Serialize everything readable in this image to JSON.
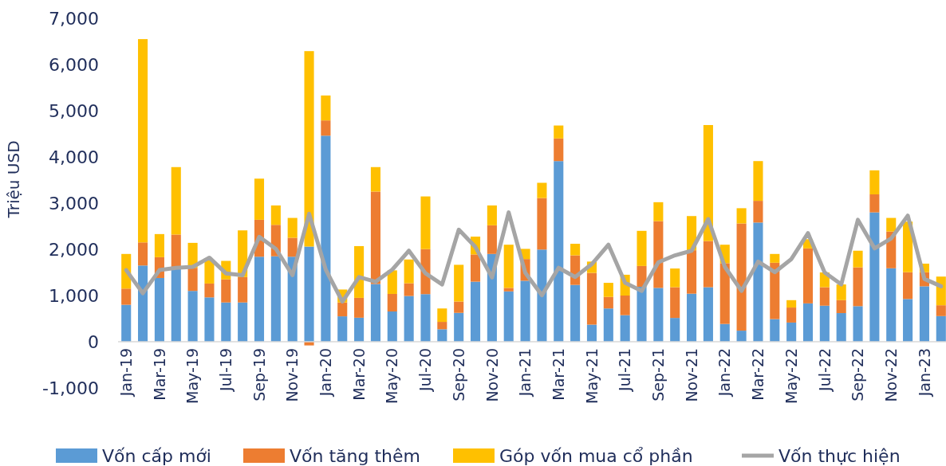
{
  "chart_data": {
    "type": "bar",
    "stacked": true,
    "ylabel": "Triệu USD",
    "ylim": [
      -1000,
      7000
    ],
    "yticks": [
      {
        "value": -1000,
        "label": "-1,000"
      },
      0,
      {
        "value": 1000,
        "label": "1,000"
      },
      {
        "value": 2000,
        "label": "2,000"
      },
      {
        "value": 3000,
        "label": "3,000"
      },
      {
        "value": 4000,
        "label": "4,000"
      },
      {
        "value": 5000,
        "label": "5,000"
      },
      {
        "value": 6000,
        "label": "6,000"
      },
      {
        "value": 7000,
        "label": "7,000"
      }
    ],
    "grid": false,
    "legend": "bottom",
    "categories": [
      "Jan-19",
      null,
      "Mar-19",
      null,
      "May-19",
      null,
      "Jul-19",
      null,
      "Sep-19",
      null,
      "Nov-19",
      null,
      "Jan-20",
      null,
      "Mar-20",
      null,
      "May-20",
      null,
      "Jul-20",
      null,
      "Sep-20",
      null,
      "Nov-20",
      null,
      "Jan-21",
      null,
      "Mar-21",
      null,
      "May-21",
      null,
      "Jul-21",
      null,
      "Sep-21",
      null,
      "Nov-21",
      null,
      "Jan-22",
      null,
      "Mar-22",
      null,
      "May-22",
      null,
      "Jul-22",
      null,
      "Sep-22",
      null,
      "Nov-22",
      null,
      "Jan-23",
      null
    ],
    "series": [
      {
        "name": "Vốn cấp mới",
        "color": "#5b9bd5",
        "values": [
          800,
          1650,
          1380,
          1600,
          1100,
          960,
          850,
          850,
          1840,
          1850,
          1840,
          2060,
          4460,
          550,
          520,
          1250,
          655,
          990,
          1030,
          270,
          625,
          1300,
          1900,
          1090,
          1320,
          1995,
          3910,
          1230,
          370,
          720,
          575,
          1190,
          1165,
          515,
          1040,
          1180,
          385,
          240,
          2580,
          490,
          415,
          830,
          780,
          620,
          770,
          2800,
          1590,
          925,
          1200,
          555
        ]
      },
      {
        "name": "Vốn tăng thêm",
        "color": "#ed7d31",
        "values": [
          350,
          500,
          450,
          720,
          500,
          300,
          500,
          550,
          800,
          680,
          410,
          -80,
          330,
          300,
          430,
          2000,
          380,
          275,
          975,
          160,
          245,
          590,
          620,
          75,
          470,
          1115,
          490,
          640,
          1120,
          250,
          425,
          450,
          1445,
          665,
          940,
          1000,
          1315,
          2320,
          470,
          1220,
          325,
          1190,
          400,
          280,
          840,
          390,
          795,
          580,
          305,
          235
        ]
      },
      {
        "name": "Góp vốn mua cổ phần",
        "color": "#ffc000",
        "values": [
          750,
          4400,
          500,
          1460,
          540,
          500,
          400,
          1010,
          890,
          420,
          430,
          4230,
          540,
          280,
          1120,
          530,
          510,
          515,
          1140,
          290,
          795,
          385,
          430,
          935,
          220,
          330,
          280,
          250,
          245,
          305,
          450,
          760,
          410,
          405,
          740,
          2510,
          400,
          330,
          860,
          190,
          160,
          200,
          320,
          340,
          360,
          520,
          295,
          1095,
          185,
          620
        ]
      },
      {
        "name": "Vốn thực hiện",
        "type": "line",
        "color": "#a5a5a5",
        "values": [
          1550,
          1050,
          1550,
          1600,
          1620,
          1820,
          1480,
          1440,
          2270,
          2010,
          1440,
          2770,
          1560,
          870,
          1400,
          1300,
          1560,
          1970,
          1480,
          1240,
          2425,
          2050,
          1390,
          2800,
          1490,
          1005,
          1600,
          1400,
          1680,
          2100,
          1275,
          1100,
          1720,
          1870,
          1970,
          2655,
          1620,
          1100,
          1735,
          1505,
          1790,
          2350,
          1500,
          1240,
          2640,
          2020,
          2235,
          2730,
          1360,
          1200
        ]
      }
    ]
  }
}
